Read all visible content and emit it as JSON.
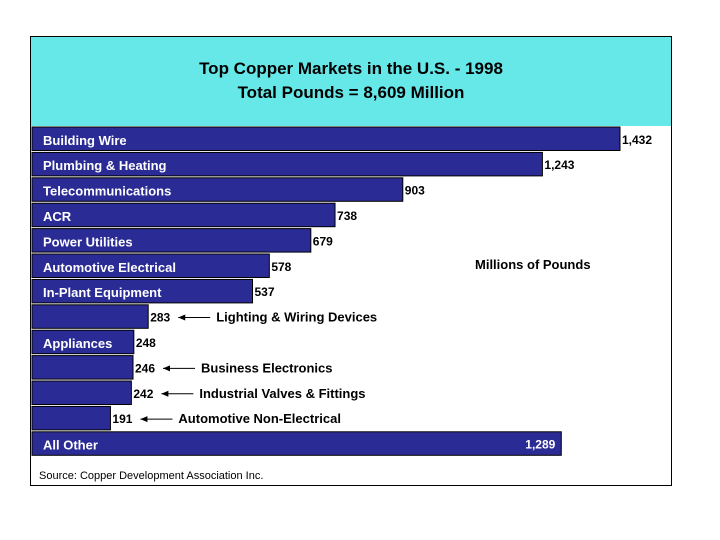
{
  "chart_data": {
    "type": "bar",
    "orientation": "horizontal",
    "title": "Top Copper Markets in the U.S. - 1998",
    "subtitle": "Total Pounds = 8,609 Million",
    "unit_note": "Millions of Pounds",
    "source": "Source: Copper Development Association Inc.",
    "bar_color": "#2b2b96",
    "header_color": "#66e8e8",
    "categories": [
      {
        "label": "Building Wire",
        "value": 1432,
        "value_text": "1,432",
        "label_side": "inside"
      },
      {
        "label": "Plumbing & Heating",
        "value": 1243,
        "value_text": "1,243",
        "label_side": "inside"
      },
      {
        "label": "Telecommunications",
        "value": 903,
        "value_text": "903",
        "label_side": "inside"
      },
      {
        "label": "ACR",
        "value": 738,
        "value_text": "738",
        "label_side": "inside"
      },
      {
        "label": "Power Utilities",
        "value": 679,
        "value_text": "679",
        "label_side": "inside"
      },
      {
        "label": "Automotive Electrical",
        "value": 578,
        "value_text": "578",
        "label_side": "inside"
      },
      {
        "label": "In-Plant Equipment",
        "value": 537,
        "value_text": "537",
        "label_side": "inside"
      },
      {
        "label": "Lighting & Wiring Devices",
        "value": 283,
        "value_text": "283",
        "label_side": "arrow"
      },
      {
        "label": "Appliances",
        "value": 248,
        "value_text": "248",
        "label_side": "inside"
      },
      {
        "label": "Business Electronics",
        "value": 246,
        "value_text": "246",
        "label_side": "arrow"
      },
      {
        "label": "Industrial Valves & Fittings",
        "value": 242,
        "value_text": "242",
        "label_side": "arrow"
      },
      {
        "label": "Automotive Non-Electrical",
        "value": 191,
        "value_text": "191",
        "label_side": "arrow"
      },
      {
        "label": "All Other",
        "value": 1289,
        "value_text": "1,289",
        "label_side": "inside",
        "value_inside": true
      }
    ]
  }
}
